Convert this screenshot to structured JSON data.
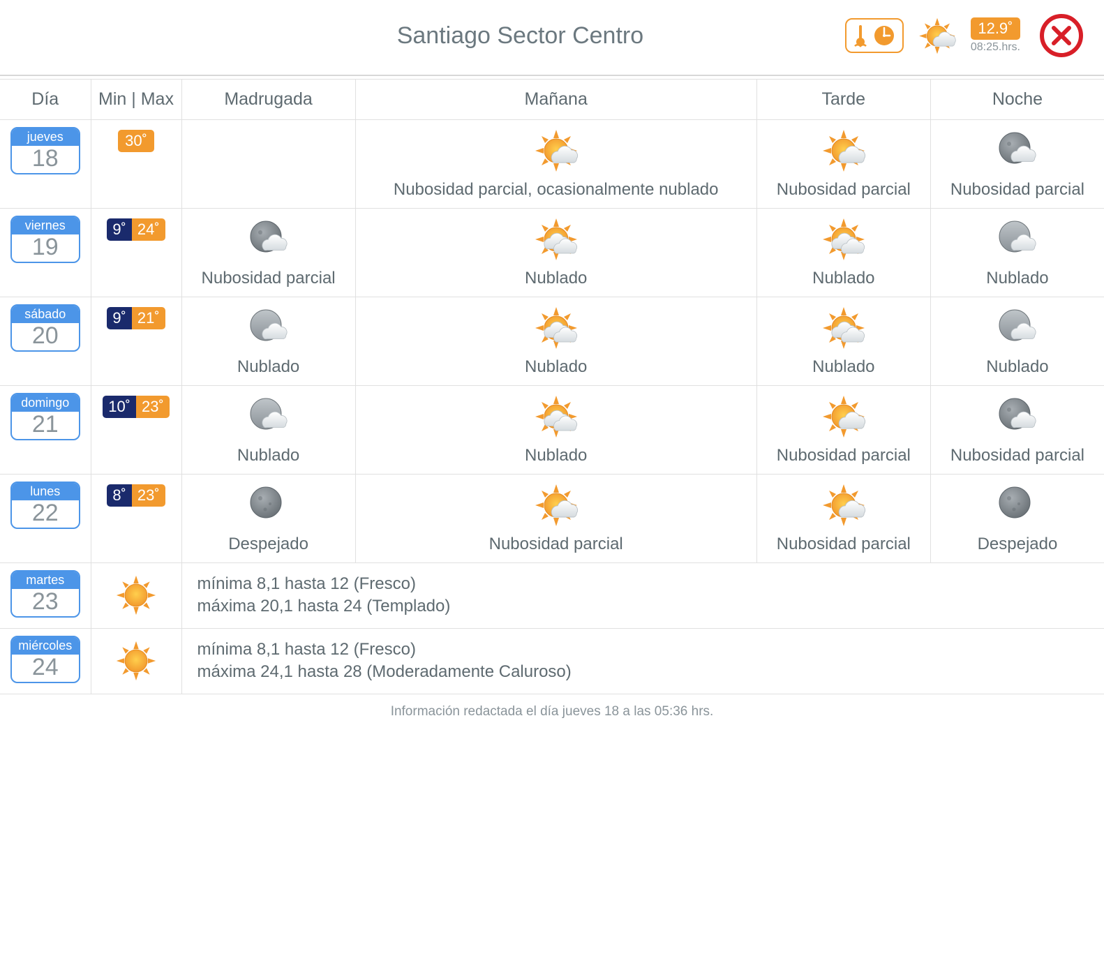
{
  "header": {
    "title": "Santiago Sector Centro",
    "current_temp": "12.9˚",
    "current_time": "08:25.hrs."
  },
  "columns": {
    "day": "Día",
    "minmax": "Min | Max",
    "periods": [
      "Madrugada",
      "Mañana",
      "Tarde",
      "Noche"
    ]
  },
  "forecast": [
    {
      "dow": "jueves",
      "num": "18",
      "min": null,
      "max": "30˚",
      "periods": [
        null,
        {
          "icon": "sun-cloud",
          "label": "Nubosidad parcial, ocasionalmente nublado"
        },
        {
          "icon": "sun-cloud",
          "label": "Nubosidad parcial"
        },
        {
          "icon": "moon-cloud",
          "label": "Nubosidad parcial"
        }
      ]
    },
    {
      "dow": "viernes",
      "num": "19",
      "min": "9˚",
      "max": "24˚",
      "periods": [
        {
          "icon": "moon-cloud",
          "label": "Nubosidad parcial"
        },
        {
          "icon": "sun-cloud-heavy",
          "label": "Nublado"
        },
        {
          "icon": "sun-cloud-heavy",
          "label": "Nublado"
        },
        {
          "icon": "grey-cloud",
          "label": "Nublado"
        }
      ]
    },
    {
      "dow": "sábado",
      "num": "20",
      "min": "9˚",
      "max": "21˚",
      "periods": [
        {
          "icon": "grey-cloud",
          "label": "Nublado"
        },
        {
          "icon": "sun-cloud-heavy",
          "label": "Nublado"
        },
        {
          "icon": "sun-cloud-heavy",
          "label": "Nublado"
        },
        {
          "icon": "grey-cloud",
          "label": "Nublado"
        }
      ]
    },
    {
      "dow": "domingo",
      "num": "21",
      "min": "10˚",
      "max": "23˚",
      "periods": [
        {
          "icon": "grey-cloud",
          "label": "Nublado"
        },
        {
          "icon": "sun-cloud-heavy",
          "label": "Nublado"
        },
        {
          "icon": "sun-cloud",
          "label": "Nubosidad parcial"
        },
        {
          "icon": "moon-cloud",
          "label": "Nubosidad parcial"
        }
      ]
    },
    {
      "dow": "lunes",
      "num": "22",
      "min": "8˚",
      "max": "23˚",
      "periods": [
        {
          "icon": "moon",
          "label": "Despejado"
        },
        {
          "icon": "sun-cloud",
          "label": "Nubosidad parcial"
        },
        {
          "icon": "sun-cloud",
          "label": "Nubosidad parcial"
        },
        {
          "icon": "moon",
          "label": "Despejado"
        }
      ]
    }
  ],
  "text_rows": [
    {
      "dow": "martes",
      "num": "23",
      "icon": "sun",
      "lines": [
        "mínima 8,1 hasta 12 (Fresco)",
        "máxima 20,1 hasta 24 (Templado)"
      ]
    },
    {
      "dow": "miércoles",
      "num": "24",
      "icon": "sun",
      "lines": [
        "mínima 8,1 hasta 12 (Fresco)",
        "máxima 24,1 hasta 28 (Moderadamente Caluroso)"
      ]
    }
  ],
  "footnote": "Información redactada el día jueves 18 a las 05:36 hrs.",
  "colors": {
    "brand_blue": "#4c95e8",
    "brand_orange": "#f29a2e",
    "dark_navy": "#1a2a6c",
    "close_red": "#d81f28",
    "text_grey": "#5e6a70",
    "light_grey": "#8a949a",
    "border": "#e0e0e0"
  }
}
